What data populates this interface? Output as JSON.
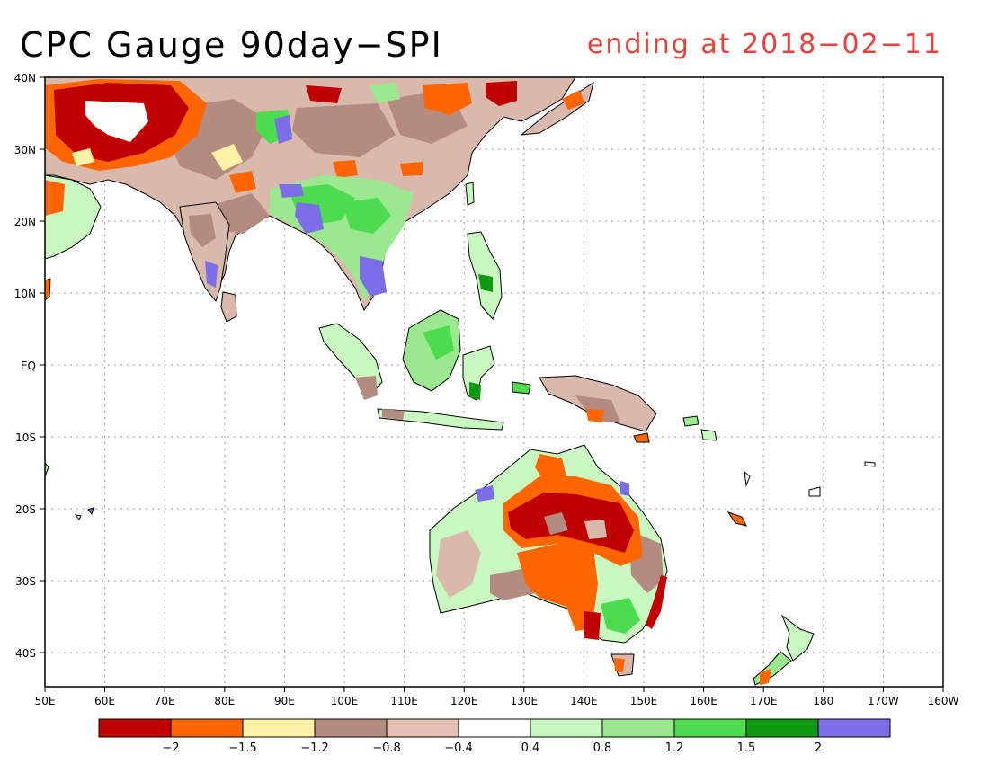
{
  "header": {
    "title": "CPC Gauge 90day−SPI",
    "subtitle": "ending at 2018−02−11"
  },
  "map": {
    "lon_labels": [
      "50E",
      "60E",
      "70E",
      "80E",
      "90E",
      "100E",
      "110E",
      "120E",
      "130E",
      "140E",
      "150E",
      "160E",
      "170E",
      "180",
      "170W",
      "160W"
    ],
    "lat_labels": [
      "40N",
      "30N",
      "20N",
      "10N",
      "EQ",
      "10S",
      "20S",
      "30S",
      "40S"
    ]
  },
  "colorbar": {
    "colors": [
      "#c00000",
      "#ff6600",
      "#fff3a8",
      "#b48b80",
      "#e3c0b3",
      "#ffffff",
      "#c8f7c0",
      "#9be890",
      "#4ddc4d",
      "#109a10",
      "#7b6ee6"
    ],
    "labels": [
      "−2",
      "−1.5",
      "−1.2",
      "−0.8",
      "−0.4",
      "0.4",
      "0.8",
      "1.2",
      "1.5",
      "2"
    ]
  }
}
